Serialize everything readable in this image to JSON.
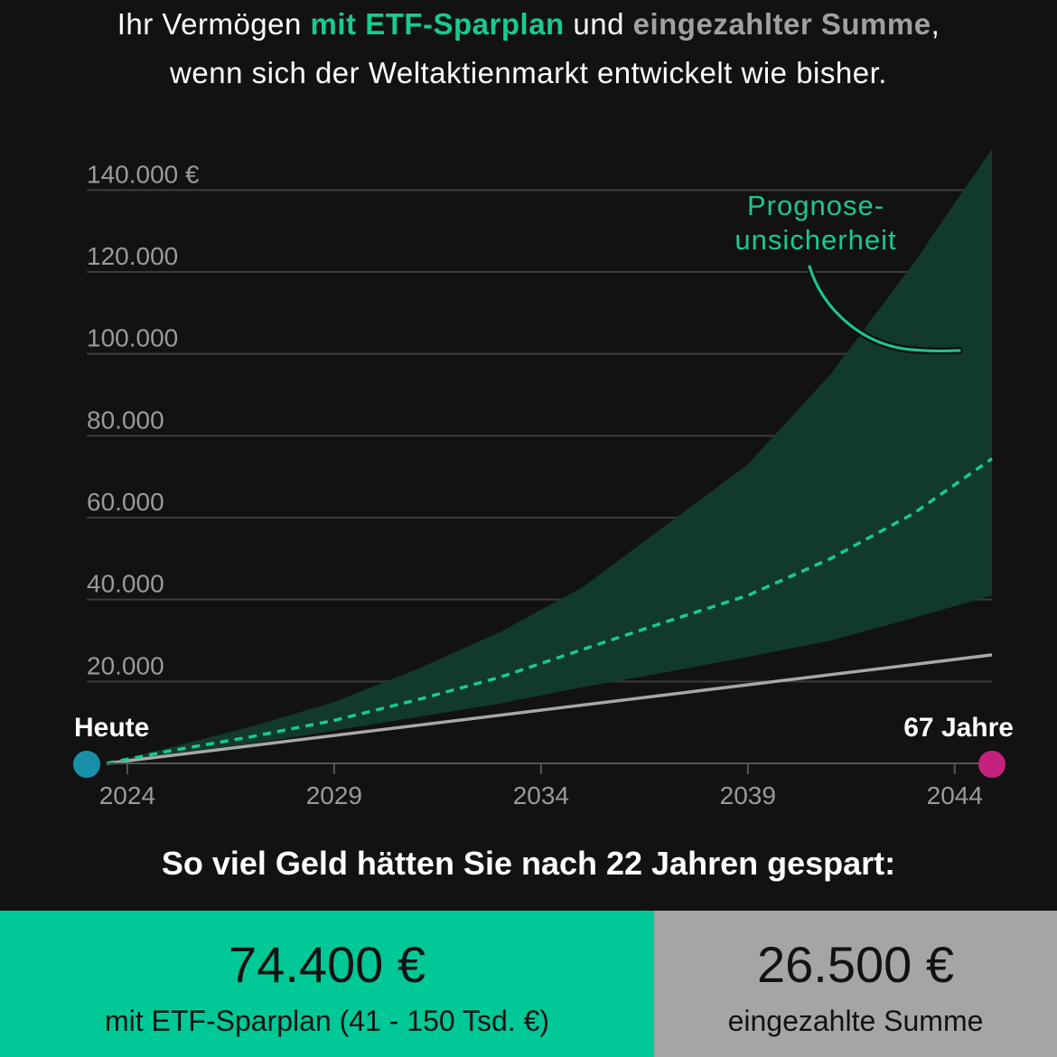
{
  "header": {
    "line1_prefix": "Ihr Vermögen ",
    "line1_green": "mit ETF-Sparplan",
    "line1_mid": " und ",
    "line1_gray": "eingezahlter Summe",
    "line1_suffix": ",",
    "line2": "wenn sich der Weltaktienmarkt entwickelt wie bisher."
  },
  "colors": {
    "background": "#121212",
    "accent_green": "#19c990",
    "band_fill": "#123a2c",
    "paid_line": "#a8a8a8",
    "start_dot": "#1a8fa8",
    "end_dot": "#c4227e",
    "gridline": "#3c3c3c"
  },
  "chart_data": {
    "type": "area",
    "x_ticks": [
      "2024",
      "2029",
      "2034",
      "2039",
      "2044"
    ],
    "y_ticks": [
      "20.000",
      "40.000",
      "60.000",
      "80.000",
      "100.000",
      "120.000",
      "140.000 €"
    ],
    "ylim": [
      0,
      150000
    ],
    "xlim": [
      2023.5,
      2044.9
    ],
    "grid": true,
    "start_label": "Heute",
    "end_label": "67 Jahre",
    "annotation": "Prognose-\nunsicherheit",
    "series": [
      {
        "name": "mit ETF-Sparplan",
        "style": "dashed",
        "x": [
          2023.5,
          2025,
          2027,
          2029,
          2031,
          2033,
          2035,
          2037,
          2039,
          2041,
          2043,
          2044.9
        ],
        "y": [
          0,
          3000,
          6500,
          10500,
          15500,
          21000,
          27800,
          34500,
          41000,
          50000,
          61000,
          74400
        ]
      },
      {
        "name": "eingezahlte Summe",
        "style": "solid",
        "x": [
          2023.5,
          2044.9
        ],
        "y": [
          0,
          26500
        ]
      },
      {
        "name": "Prognoseunsicherheit Obergrenze",
        "style": "band-upper",
        "x": [
          2023.5,
          2025,
          2027,
          2029,
          2031,
          2033,
          2035,
          2037,
          2039,
          2041,
          2043,
          2044.9
        ],
        "y": [
          0,
          3800,
          9000,
          15000,
          23000,
          32000,
          43000,
          58000,
          73000,
          95000,
          122000,
          150000
        ]
      },
      {
        "name": "Prognoseunsicherheit Untergrenze",
        "style": "band-lower",
        "x": [
          2023.5,
          2025,
          2027,
          2029,
          2031,
          2033,
          2035,
          2037,
          2039,
          2041,
          2043,
          2044.9
        ],
        "y": [
          0,
          2300,
          4800,
          8000,
          11300,
          14600,
          18600,
          22200,
          26000,
          30000,
          35500,
          41000
        ]
      }
    ]
  },
  "summary": {
    "heading": "So viel Geld hätten Sie nach 22 Jahren gespart:",
    "etf_value": "74.400 €",
    "etf_label": "mit ETF-Sparplan (41 - 150 Tsd. €)",
    "paid_value": "26.500 €",
    "paid_label": "eingezahlte Summe"
  }
}
